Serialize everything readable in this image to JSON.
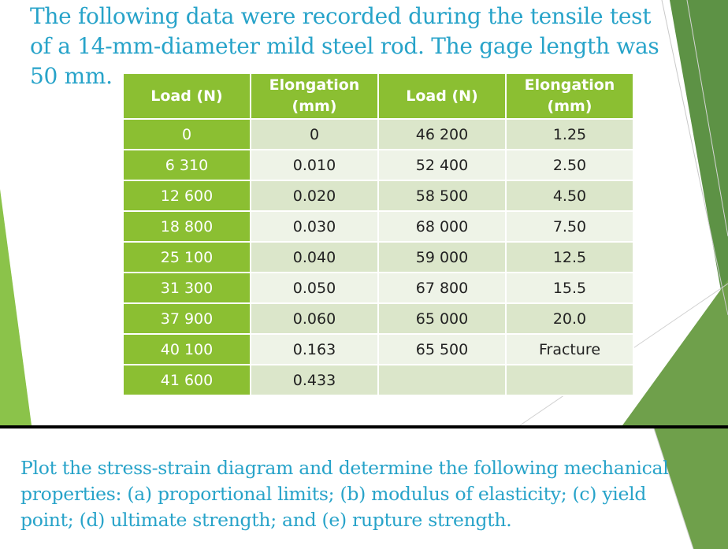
{
  "heading": "The following data were recorded during the tensile test of a 14-mm-diameter mild steel rod. The gage length was 50 mm.",
  "table": {
    "headers": [
      "Load (N)",
      "Elongation (mm)",
      "Load (N)",
      "Elongation (mm)"
    ],
    "rows": [
      [
        "0",
        "0",
        "46 200",
        "1.25"
      ],
      [
        "6 310",
        "0.010",
        "52 400",
        "2.50"
      ],
      [
        "12 600",
        "0.020",
        "58 500",
        "4.50"
      ],
      [
        "18 800",
        "0.030",
        "68 000",
        "7.50"
      ],
      [
        "25 100",
        "0.040",
        "59 000",
        "12.5"
      ],
      [
        "31 300",
        "0.050",
        "67 800",
        "15.5"
      ],
      [
        "37 900",
        "0.060",
        "65 000",
        "20.0"
      ],
      [
        "40 100",
        "0.163",
        "65 500",
        "Fracture"
      ],
      [
        "41 600",
        "0.433",
        "",
        ""
      ]
    ]
  },
  "question": "Plot the stress-strain diagram and determine the following mechanical properties: (a) proportional limits; (b) modulus of elasticity; (c) yield point; (d) ultimate strength; and (e) rupture strength.",
  "colors": {
    "text_blue": "#27a3c9",
    "table_green": "#8bbf32",
    "row_light": "#dbe6ca",
    "row_lighter": "#eef3e7",
    "deco_green": "#6fa04b",
    "deco_green_dark": "#4e8a3a"
  }
}
